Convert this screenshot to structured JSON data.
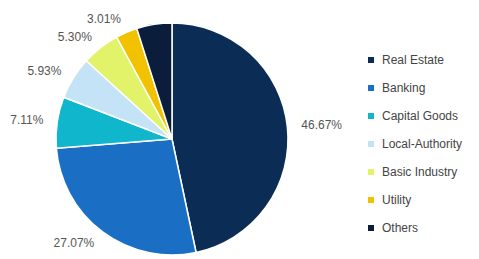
{
  "chart_data": {
    "type": "pie",
    "categories": [
      "Real Estate",
      "Banking",
      "Capital Goods",
      "Local-Authority",
      "Basic Industry",
      "Utility",
      "Others"
    ],
    "values": [
      46.67,
      27.07,
      7.11,
      5.93,
      5.3,
      3.01,
      4.91
    ],
    "value_labels": [
      "46.67%",
      "27.07%",
      "7.11%",
      "5.93%",
      "5.30%",
      "3.01%",
      null
    ],
    "colors": [
      "#0b2d55",
      "#1a6fc4",
      "#0fb6cc",
      "#c5e3f7",
      "#e2f36a",
      "#f2c200",
      "#0a1e3c"
    ],
    "legend": "right",
    "data_labels": true
  }
}
